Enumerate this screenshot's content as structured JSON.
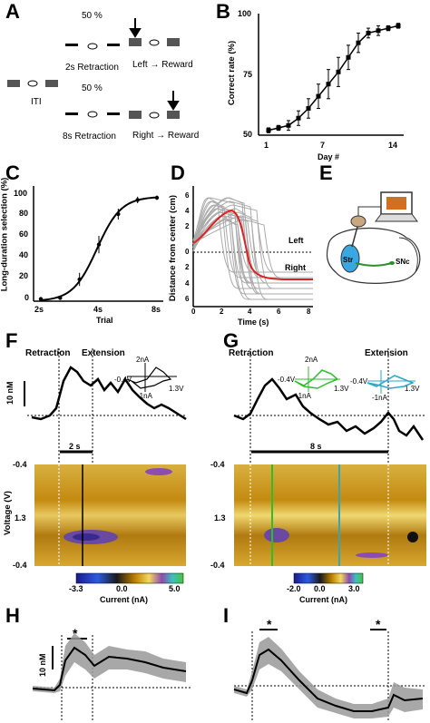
{
  "panels": {
    "A": {
      "letter": "A",
      "prob_top": "50 %",
      "prob_bottom": "50 %",
      "iti": "ITI",
      "short_retraction": "2s Retraction",
      "long_retraction": "8s Retraction",
      "left_reward": "Left → Reward",
      "right_reward": "Right → Reward"
    },
    "B": {
      "letter": "B",
      "ylabel": "Correct rate (%)",
      "xlabel": "Day #",
      "yticks": [
        "100",
        "75",
        "50"
      ],
      "xticks": [
        "1",
        "7",
        "14"
      ]
    },
    "C": {
      "letter": "C",
      "ylabel": "Long-duration selection (%)",
      "xlabel": "Trial",
      "yticks": [
        "100",
        "80",
        "60",
        "40",
        "20",
        "0"
      ],
      "xticks": [
        "2s",
        "4s",
        "8s"
      ]
    },
    "D": {
      "letter": "D",
      "ylabel": "Distance from center (cm)",
      "xlabel": "Time (s)",
      "yticks": [
        "6",
        "4",
        "2",
        "0",
        "2",
        "4",
        "6"
      ],
      "xticks": [
        "0",
        "2",
        "4",
        "6",
        "8"
      ],
      "left": "Left",
      "right": "Right"
    },
    "E": {
      "letter": "E",
      "str": "Str",
      "snc": "SNc"
    },
    "F": {
      "letter": "F",
      "retraction": "Retraction",
      "extension": "Extension",
      "scale": "10 nM",
      "duration": "2 s",
      "cv_top": "2nA",
      "cv_left": "-0.4V",
      "cv_bottom": "-1nA",
      "cv_right": "1.3V",
      "ylabel": "Voltage (V)",
      "yticks": [
        "-0.4",
        "1.3",
        "-0.4"
      ],
      "cbar_ticks": [
        "-3.3",
        "0.0",
        "5.0"
      ],
      "cbar_label": "Current (nA)"
    },
    "G": {
      "letter": "G",
      "retraction": "Retraction",
      "extension": "Extension",
      "duration": "8 s",
      "cv1_top": "2nA",
      "cv1_left": "-0.4V",
      "cv1_bottom": "-1nA",
      "cv1_right": "1.3V",
      "cv2_left": "-0.4V",
      "cv2_bottom": "-1nA",
      "cv2_right": "1.3V",
      "yticks": [
        "-0.4",
        "1.3",
        "-0.4"
      ],
      "cbar_ticks": [
        "-2.0",
        "0.0",
        "3.0"
      ],
      "cbar_label": "Current (nA)"
    },
    "H": {
      "letter": "H",
      "scale": "10 nM",
      "star": "*"
    },
    "I": {
      "letter": "I",
      "star1": "*",
      "star2": "*"
    }
  },
  "chart_data": [
    {
      "panel": "B",
      "type": "line",
      "x": [
        1,
        2,
        3,
        4,
        5,
        6,
        7,
        8,
        9,
        10,
        11,
        12,
        13,
        14
      ],
      "values": [
        52,
        53,
        54,
        57,
        61,
        66,
        71,
        76,
        82,
        88,
        92,
        93,
        94,
        95
      ],
      "errors": [
        1,
        1,
        2,
        3,
        4,
        5,
        6,
        6,
        5,
        4,
        2,
        2,
        1,
        1
      ],
      "xlim": [
        0,
        15
      ],
      "ylim": [
        50,
        100
      ]
    },
    {
      "panel": "C",
      "type": "line",
      "x": [
        1,
        2,
        3,
        4,
        5,
        6,
        7
      ],
      "values": [
        2,
        3,
        20,
        52,
        80,
        93,
        95
      ],
      "errors": [
        1,
        1,
        6,
        8,
        5,
        3,
        2
      ],
      "ylim": [
        0,
        100
      ]
    }
  ],
  "colors": {
    "colormap": [
      "#1a1a8c",
      "#2c5be0",
      "#1a1a1a",
      "#c08000",
      "#f2d860",
      "#8c4cb0",
      "#3cc0c0",
      "#4ac23a"
    ],
    "cv_green": "#2cbf2c",
    "cv_cyan": "#2aa8c8",
    "trial_mean": "#e02020",
    "str_blue": "#3aa8e0"
  }
}
